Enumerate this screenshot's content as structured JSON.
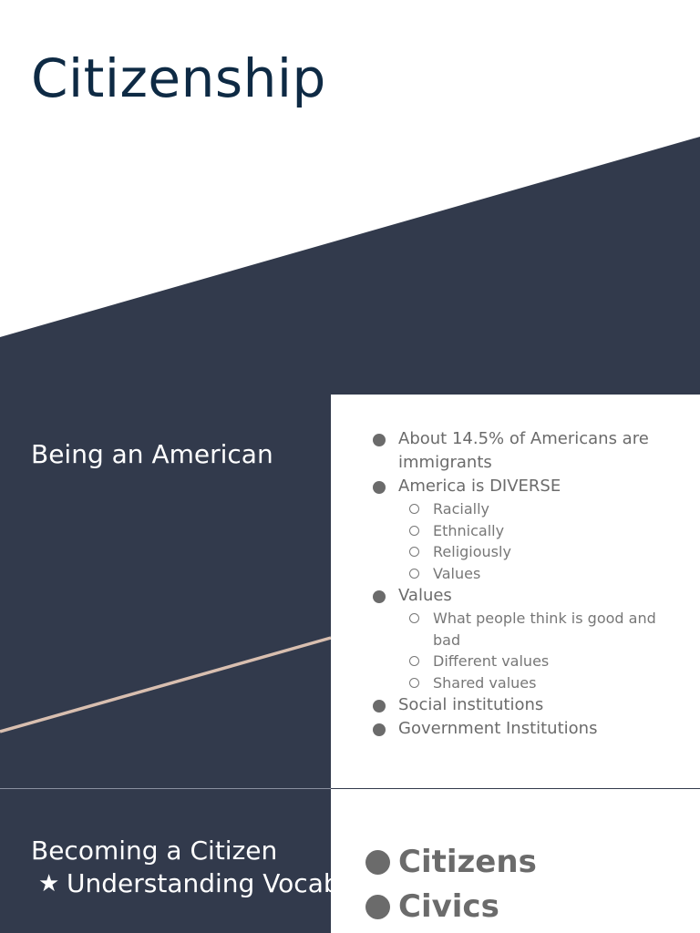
{
  "title": "Citizenship",
  "colors": {
    "navy": "#323a4c",
    "title": "#0e2a44",
    "accent_line": "#d9bfb0",
    "bullet_text": "#6b6b6b"
  },
  "section1": {
    "heading": "Being an American",
    "bullets": [
      {
        "text": "About 14.5% of Americans are immigrants",
        "sub": []
      },
      {
        "text": "America is DIVERSE",
        "sub": [
          "Racially",
          "Ethnically",
          "Religiously",
          "Values"
        ]
      },
      {
        "text": "Values",
        "sub": [
          "What people think is good and bad",
          "Different values",
          "Shared values"
        ]
      },
      {
        "text": "Social institutions",
        "sub": []
      },
      {
        "text": "Government Institutions",
        "sub": []
      }
    ]
  },
  "section2": {
    "heading": "Becoming a Citizen",
    "sub_items": [
      "Understanding Vocab"
    ],
    "sub_icon": "star-icon",
    "bullets": [
      "Citizens",
      "Civics"
    ]
  }
}
